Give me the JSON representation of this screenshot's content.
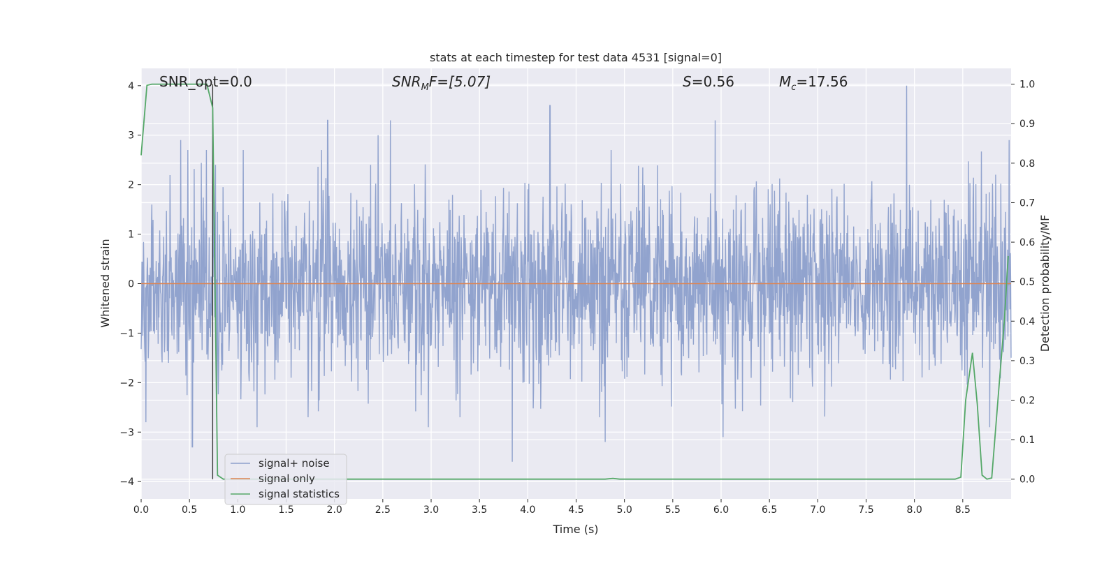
{
  "chart_data": {
    "type": "line",
    "title": "stats at each timestep for test data 4531 [signal=0]",
    "xlabel": "Time (s)",
    "ylabel_left": "Whitened strain",
    "ylabel_right": "Detection probability/MF",
    "xlim": [
      0.0,
      9.0
    ],
    "ylim_left": [
      -4.35,
      4.35
    ],
    "ylim_right": [
      -0.05,
      1.04
    ],
    "x_ticks": [
      "0.0",
      "0.5",
      "1.0",
      "1.5",
      "2.0",
      "2.5",
      "3.0",
      "3.5",
      "4.0",
      "4.5",
      "5.0",
      "5.5",
      "6.0",
      "6.5",
      "7.0",
      "7.5",
      "8.0",
      "8.5"
    ],
    "y_ticks_left": [
      "-4",
      "-3",
      "-2",
      "-1",
      "0",
      "1",
      "2",
      "3",
      "4"
    ],
    "y_ticks_right": [
      "0.0",
      "0.1",
      "0.2",
      "0.3",
      "0.4",
      "0.5",
      "0.6",
      "0.7",
      "0.8",
      "0.9",
      "1.0"
    ],
    "grid": true,
    "legend_position": "lower-left",
    "annotations": [
      {
        "text": "SNR_opt=0.0"
      },
      {
        "base": "SNR",
        "sub": "M",
        "rest": "F=[5.07]"
      },
      {
        "base": "S",
        "sub": "",
        "rest": "=0.56"
      },
      {
        "base": "M",
        "sub": "c",
        "rest": "=17.56"
      }
    ],
    "vertical_marker_x": 0.74,
    "series": [
      {
        "name": "signal+ noise",
        "axis": "left",
        "color": "#8c9fcb",
        "style": "dense noise, approx. ±1.3 core with peaks to about ±4",
        "peaks": [
          {
            "x": 0.05,
            "y": -2.8
          },
          {
            "x": 0.41,
            "y": 2.9
          },
          {
            "x": 0.53,
            "y": -3.3
          },
          {
            "x": 0.77,
            "y": 2.4
          },
          {
            "x": 1.2,
            "y": -2.9
          },
          {
            "x": 1.93,
            "y": 3.3
          },
          {
            "x": 2.45,
            "y": 3.0
          },
          {
            "x": 2.58,
            "y": 3.3
          },
          {
            "x": 2.97,
            "y": -2.9
          },
          {
            "x": 3.84,
            "y": -3.6
          },
          {
            "x": 4.23,
            "y": 3.6
          },
          {
            "x": 4.8,
            "y": -3.2
          },
          {
            "x": 5.94,
            "y": 3.3
          },
          {
            "x": 6.02,
            "y": -3.1
          },
          {
            "x": 7.92,
            "y": 4.0
          },
          {
            "x": 8.78,
            "y": -2.9
          },
          {
            "x": 8.98,
            "y": 2.9
          }
        ]
      },
      {
        "name": "signal only",
        "axis": "left",
        "color": "#dd8452",
        "x": [
          0.0,
          9.0
        ],
        "y": [
          0.0,
          0.0
        ]
      },
      {
        "name": "signal statistics",
        "axis": "right",
        "color": "#55a868",
        "x": [
          0.0,
          0.06,
          0.11,
          0.5,
          0.68,
          0.74,
          0.79,
          0.85,
          4.8,
          4.88,
          4.95,
          8.42,
          8.48,
          8.53,
          8.6,
          8.65,
          8.7,
          8.75,
          8.8,
          8.88,
          8.93,
          8.97
        ],
        "y": [
          0.82,
          0.997,
          1.0,
          1.0,
          1.0,
          0.94,
          0.01,
          0.0,
          0.0,
          0.002,
          0.0,
          0.0,
          0.005,
          0.2,
          0.32,
          0.19,
          0.01,
          0.0,
          0.003,
          0.25,
          0.4,
          0.565
        ]
      }
    ]
  }
}
